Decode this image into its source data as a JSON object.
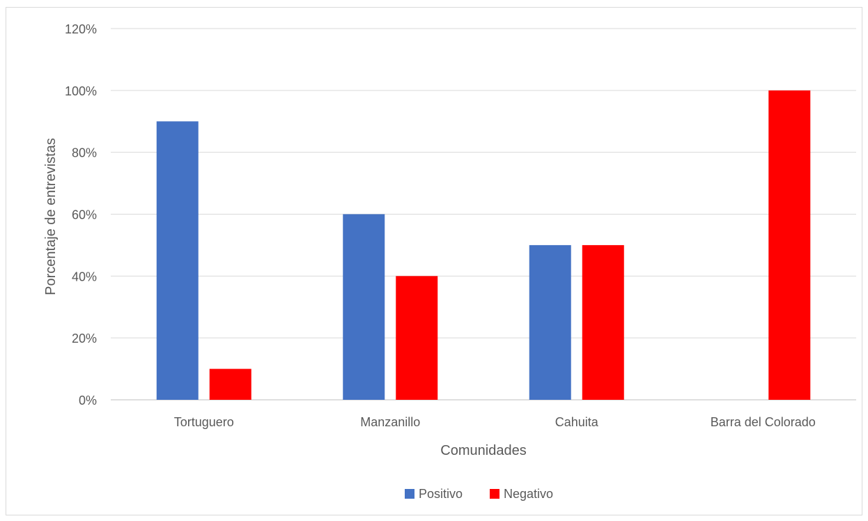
{
  "chart_data": {
    "type": "bar",
    "title": "",
    "xlabel": "Comunidades",
    "ylabel": "Porcentaje de entrevistas",
    "categories": [
      "Tortuguero",
      "Manzanillo",
      "Cahuita",
      "Barra del Colorado"
    ],
    "series": [
      {
        "name": "Positivo",
        "color": "#4472C4",
        "values": [
          90,
          60,
          50,
          0
        ]
      },
      {
        "name": "Negativo",
        "color": "#FF0000",
        "values": [
          10,
          40,
          50,
          100
        ]
      }
    ],
    "ylim": [
      0,
      120
    ],
    "yticks": [
      "0%",
      "20%",
      "40%",
      "60%",
      "80%",
      "100%",
      "120%"
    ],
    "grid": true,
    "legend_position": "bottom"
  }
}
